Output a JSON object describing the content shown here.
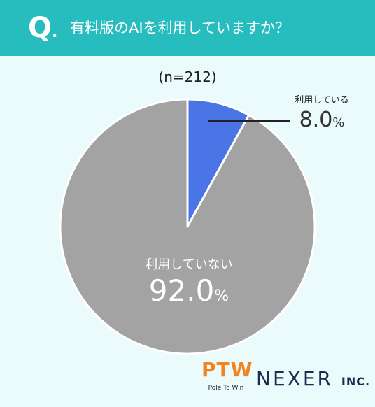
{
  "header": {
    "q_mark": "Q",
    "q_dot": ".",
    "question": "有料版のAIを利用していますか？"
  },
  "chart_data": {
    "type": "pie",
    "subtitle": "(n=212)",
    "series": [
      {
        "name": "利用している",
        "value": 8.0,
        "label": "8.0",
        "unit": "%",
        "color": "#4b74e6"
      },
      {
        "name": "利用していない",
        "value": 92.0,
        "label": "92.0",
        "unit": "%",
        "color": "#a3a3a3"
      }
    ]
  },
  "logos": {
    "ptw_main": "PTW",
    "ptw_sub": "Pole To Win",
    "nexer": "NEXER",
    "nexer_inc": "INC."
  },
  "colors": {
    "header_bg": "#27bdbf",
    "page_bg": "#ebfafa",
    "used": "#4b74e6",
    "not_used": "#a3a3a3"
  }
}
